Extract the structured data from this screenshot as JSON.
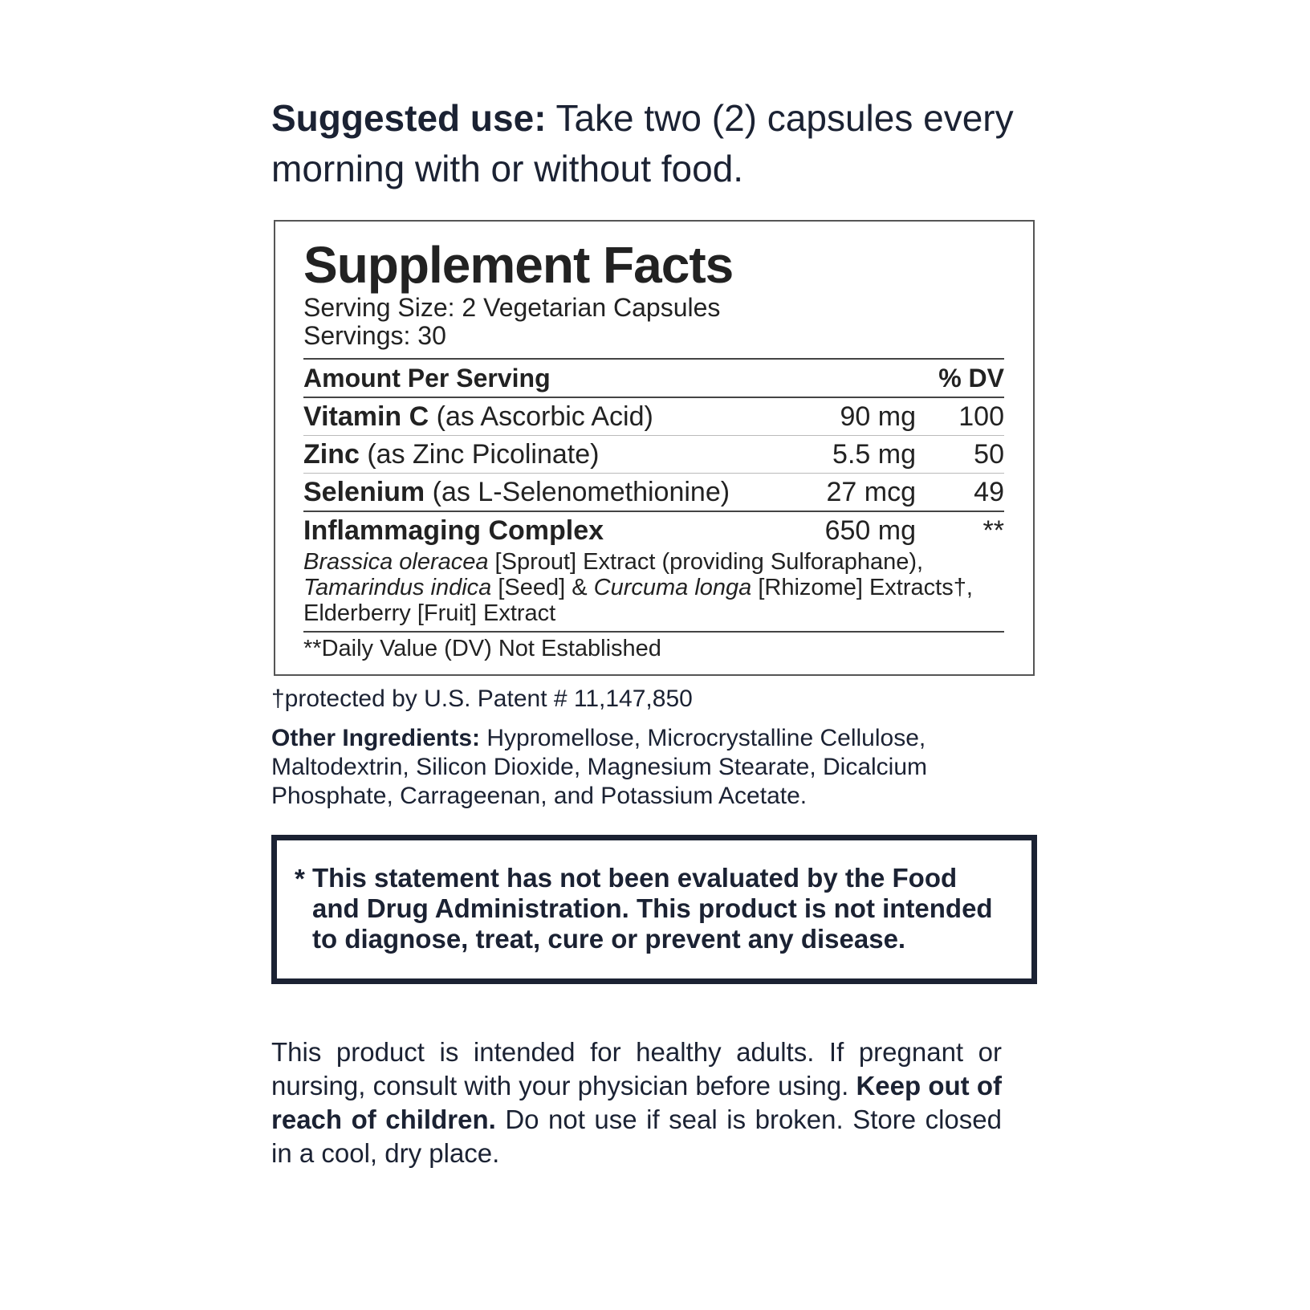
{
  "suggested_use": {
    "label": "Suggested use:",
    "text": " Take two (2) capsules every morning with or without food."
  },
  "facts": {
    "title": "Supplement Facts",
    "serving_size": "Serving Size: 2 Vegetarian Capsules",
    "servings": "Servings: 30",
    "header_left": "Amount Per Serving",
    "header_right": "% DV",
    "rows": [
      {
        "name": "Vitamin C",
        "detail": " (as Ascorbic Acid)",
        "amount": "90 mg",
        "dv": "100"
      },
      {
        "name": "Zinc",
        "detail": " (as Zinc Picolinate)",
        "amount": "5.5 mg",
        "dv": "50"
      },
      {
        "name": "Selenium",
        "detail": " (as L-Selenomethionine)",
        "amount": "27 mcg",
        "dv": "49"
      },
      {
        "name": "Inflammaging Complex",
        "detail": "",
        "amount": "650 mg",
        "dv": "**"
      }
    ],
    "complex": {
      "i1": "Brassica oleracea",
      "t1": " [Sprout] Extract (providing Sulforaphane),",
      "i2": "Tamarindus indica",
      "t2": " [Seed] & ",
      "i3": "Curcuma longa",
      "t3": " [Rhizome] Extracts†,",
      "t4": "Elderberry [Fruit] Extract"
    },
    "footnote": "**Daily Value (DV) Not Established"
  },
  "patent": "†protected by U.S. Patent # 11,147,850",
  "other": {
    "label": "Other Ingredients:",
    "text": " Hypromellose, Microcrystalline Cellulose, Maltodextrin, Silicon Dioxide, Magnesium Stearate, Dicalcium Phosphate, Carrageenan, and Potassium Acetate."
  },
  "fda": {
    "star": "*",
    "text": "This statement has not been evaluated by the Food and Drug Administration. This product is not intended to diagnose, treat, cure or prevent any disease."
  },
  "warning": {
    "t1": "This product is intended for healthy adults. If pregnant or nursing, consult with your physician before using. ",
    "bold": "Keep out of reach of children.",
    "t2": " Do not use if seal is broken. Store closed in a cool, dry place."
  }
}
